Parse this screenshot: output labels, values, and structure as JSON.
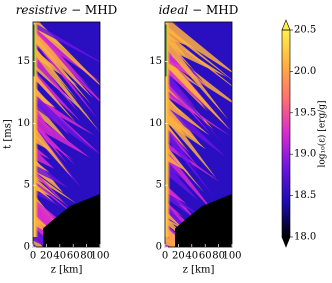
{
  "chart_data": {
    "type": "heatmap",
    "panels": [
      {
        "title_emphasis": "resistive",
        "title_rest": "− MHD"
      },
      {
        "title_emphasis": "ideal",
        "title_rest": "− MHD"
      }
    ],
    "xlabel": "z [km]",
    "ylabel": "t [ms]",
    "xlim": [
      0,
      100
    ],
    "xticks": [
      0,
      20,
      40,
      60,
      80,
      100
    ],
    "ylim": [
      0,
      18.2
    ],
    "yticks": [
      0,
      5,
      10,
      15
    ],
    "colorbar": {
      "label": "log₁₀(ε) [erg/g]",
      "lim": [
        18,
        20.5
      ],
      "ticks": [
        {
          "value": 18,
          "label": "18.0"
        },
        18.5,
        {
          "value": 19,
          "label": "19.0"
        },
        19.5,
        {
          "value": 20,
          "label": "20.0"
        },
        20.5
      ],
      "colormap": [
        "#000000",
        "#1a0cb0",
        "#6b14e0",
        "#d82ad0",
        "#ff6f70",
        "#ffb040",
        "#fff04a"
      ]
    }
  }
}
